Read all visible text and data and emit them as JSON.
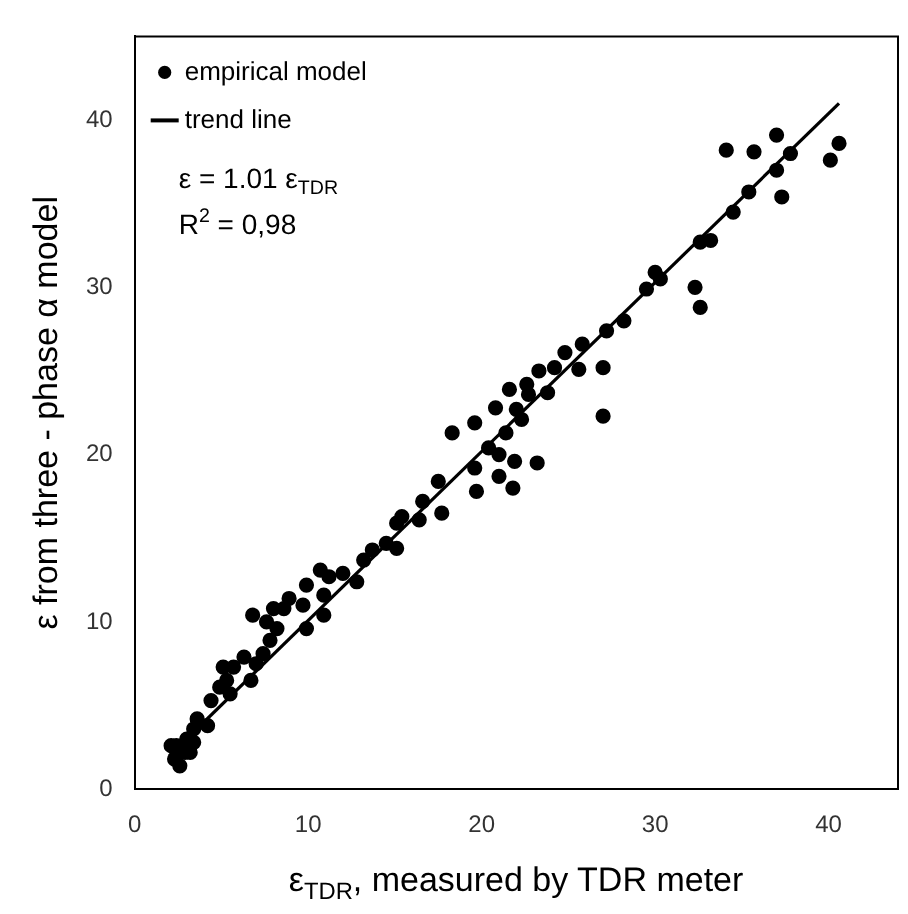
{
  "chart_data": {
    "type": "scatter",
    "xlabel": "ε$_{TDR}$, measured by TDR meter",
    "ylabel": "ε from three - phase α model",
    "xlim": [
      0,
      44
    ],
    "ylim": [
      0,
      45
    ],
    "xticks": [
      0,
      10,
      20,
      30,
      40
    ],
    "yticks": [
      0,
      10,
      20,
      30,
      40
    ],
    "grid": false,
    "legend": "top left",
    "annotations": [
      "ε = 1.01 ε$_{TDR}$",
      "R$^{2}$ = 0,98"
    ],
    "series": [
      {
        "name": "empirical model",
        "type": "scatter",
        "marker": "circle",
        "color": "#000000",
        "x": [
          34.1,
          35.7,
          37.0,
          37.8,
          40.6,
          40.1,
          37.0,
          37.3,
          35.4,
          34.5,
          33.2,
          32.6,
          30.0,
          29.5,
          30.3,
          32.3,
          32.6,
          28.2,
          27.2,
          27.0,
          27.0,
          25.8,
          24.8,
          25.6,
          24.2,
          23.3,
          22.6,
          21.6,
          23.8,
          22.7,
          22.0,
          20.8,
          19.6,
          18.3,
          21.4,
          22.3,
          20.4,
          21.0,
          21.9,
          23.2,
          19.6,
          19.7,
          21.0,
          21.8,
          17.5,
          17.7,
          16.6,
          16.4,
          15.4,
          15.1,
          15.1,
          14.5,
          13.7,
          13.2,
          12.8,
          12.0,
          11.2,
          10.7,
          10.9,
          10.9,
          9.9,
          9.7,
          9.9,
          8.9,
          8.6,
          8.0,
          6.8,
          7.6,
          8.2,
          7.8,
          7.4,
          7.0,
          6.3,
          6.7,
          5.7,
          5.1,
          5.3,
          4.9,
          5.5,
          4.4,
          4.2,
          3.6,
          3.4,
          3.0,
          2.4,
          2.1,
          2.3,
          2.6,
          3.2,
          2.9,
          3.4
        ],
        "values": [
          38.2,
          38.1,
          39.1,
          38.0,
          38.6,
          37.6,
          37.0,
          35.4,
          35.7,
          34.5,
          32.8,
          32.7,
          30.9,
          29.9,
          30.5,
          30.0,
          28.8,
          28.0,
          27.4,
          25.2,
          22.3,
          26.6,
          26.1,
          25.1,
          25.2,
          25.0,
          24.2,
          23.9,
          23.7,
          23.6,
          22.7,
          22.8,
          21.9,
          21.3,
          21.3,
          22.1,
          20.4,
          20.0,
          19.6,
          19.5,
          19.2,
          17.8,
          18.7,
          18.0,
          18.4,
          16.5,
          17.2,
          16.1,
          16.3,
          15.9,
          14.4,
          14.7,
          14.3,
          13.7,
          12.4,
          12.9,
          12.7,
          13.1,
          11.6,
          10.4,
          12.2,
          11.0,
          9.6,
          11.4,
          10.8,
          10.8,
          10.4,
          10.0,
          9.6,
          8.9,
          8.1,
          7.5,
          7.9,
          6.5,
          7.3,
          7.3,
          6.5,
          6.1,
          5.7,
          5.3,
          3.8,
          4.2,
          3.6,
          3.0,
          2.6,
          2.6,
          1.8,
          1.4,
          2.2,
          2.2,
          2.8
        ]
      },
      {
        "name": "trend line",
        "type": "line",
        "marker": "none",
        "line_style": "solid",
        "color": "#000000",
        "x": [
          2,
          40.6
        ],
        "values": [
          2,
          41
        ]
      }
    ]
  }
}
